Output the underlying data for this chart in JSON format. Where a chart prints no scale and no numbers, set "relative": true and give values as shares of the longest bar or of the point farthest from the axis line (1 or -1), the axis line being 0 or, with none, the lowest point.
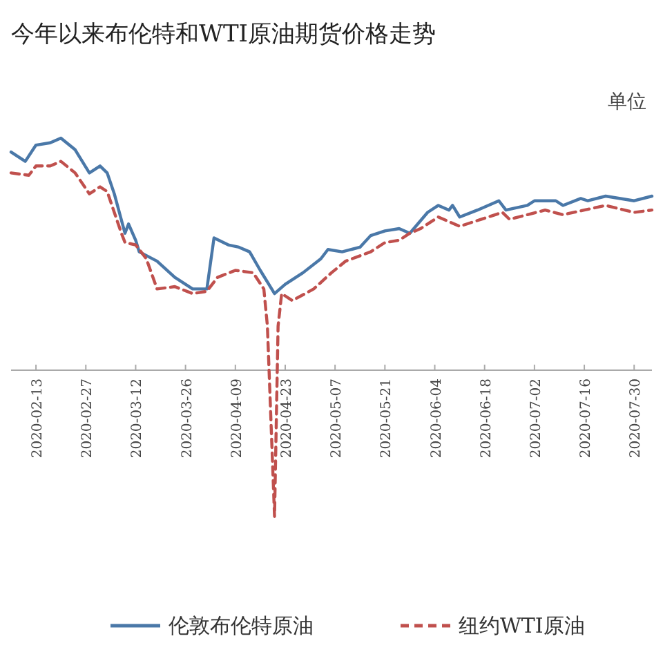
{
  "chart_data": {
    "type": "line",
    "title": "今年以来布伦特和WTI原油期货价格走势",
    "annotations": [
      "单位"
    ],
    "relative": true,
    "legend": "bottom",
    "grid": false,
    "xlim": [
      "2020-02-06",
      "2020-08-04"
    ],
    "xticks": [
      "2020-02-13",
      "2020-02-27",
      "2020-03-12",
      "2020-03-26",
      "2020-04-09",
      "2020-04-23",
      "2020-05-07",
      "2020-05-21",
      "2020-06-04",
      "2020-06-18",
      "2020-07-02",
      "2020-07-16",
      "2020-07-30"
    ],
    "series": [
      {
        "name": "伦敦布伦特原油",
        "color": "#4a78a8",
        "line_style": "solid",
        "x": [
          "2020-02-06",
          "2020-02-10",
          "2020-02-13",
          "2020-02-17",
          "2020-02-20",
          "2020-02-24",
          "2020-02-28",
          "2020-03-02",
          "2020-03-04",
          "2020-03-06",
          "2020-03-09",
          "2020-03-10",
          "2020-03-12",
          "2020-03-13",
          "2020-03-18",
          "2020-03-23",
          "2020-03-28",
          "2020-04-01",
          "2020-04-03",
          "2020-04-07",
          "2020-04-10",
          "2020-04-13",
          "2020-04-16",
          "2020-04-20",
          "2020-04-23",
          "2020-04-28",
          "2020-05-03",
          "2020-05-05",
          "2020-05-09",
          "2020-05-14",
          "2020-05-17",
          "2020-05-21",
          "2020-05-25",
          "2020-05-28",
          "2020-06-02",
          "2020-06-05",
          "2020-06-08",
          "2020-06-09",
          "2020-06-11",
          "2020-06-16",
          "2020-06-22",
          "2020-06-24",
          "2020-06-30",
          "2020-07-02",
          "2020-07-08",
          "2020-07-10",
          "2020-07-15",
          "2020-07-17",
          "2020-07-22",
          "2020-07-30",
          "2020-08-04"
        ],
        "values": [
          0.94,
          0.9,
          0.97,
          0.98,
          1,
          0.95,
          0.85,
          0.88,
          0.85,
          0.76,
          0.59,
          0.63,
          0.56,
          0.51,
          0.47,
          0.4,
          0.35,
          0.35,
          0.57,
          0.54,
          0.53,
          0.51,
          0.43,
          0.33,
          0.37,
          0.42,
          0.48,
          0.52,
          0.51,
          0.53,
          0.58,
          0.6,
          0.61,
          0.59,
          0.68,
          0.71,
          0.69,
          0.71,
          0.66,
          0.69,
          0.73,
          0.69,
          0.71,
          0.73,
          0.73,
          0.71,
          0.74,
          0.73,
          0.75,
          0.73,
          0.75
        ]
      },
      {
        "name": "纽约WTI原油",
        "color": "#c0504d",
        "line_style": "dashed",
        "x": [
          "2020-02-06",
          "2020-02-11",
          "2020-02-13",
          "2020-02-17",
          "2020-02-20",
          "2020-02-24",
          "2020-02-28",
          "2020-03-02",
          "2020-03-04",
          "2020-03-08",
          "2020-03-09",
          "2020-03-12",
          "2020-03-15",
          "2020-03-18",
          "2020-03-23",
          "2020-03-28",
          "2020-04-01",
          "2020-04-04",
          "2020-04-09",
          "2020-04-14",
          "2020-04-17",
          "2020-04-18",
          "2020-04-20",
          "2020-04-21",
          "2020-04-22",
          "2020-04-25",
          "2020-05-01",
          "2020-05-06",
          "2020-05-10",
          "2020-05-17",
          "2020-05-21",
          "2020-05-25",
          "2020-05-28",
          "2020-05-31",
          "2020-06-05",
          "2020-06-08",
          "2020-06-11",
          "2020-06-17",
          "2020-06-23",
          "2020-06-25",
          "2020-07-05",
          "2020-07-10",
          "2020-07-16",
          "2020-07-22",
          "2020-07-30",
          "2020-08-04"
        ],
        "values": [
          0.85,
          0.84,
          0.88,
          0.88,
          0.9,
          0.85,
          0.76,
          0.79,
          0.77,
          0.59,
          0.55,
          0.54,
          0.48,
          0.35,
          0.36,
          0.33,
          0.34,
          0.4,
          0.43,
          0.42,
          0.35,
          0.19,
          -0.63,
          0.19,
          0.33,
          0.3,
          0.35,
          0.42,
          0.47,
          0.51,
          0.55,
          0.56,
          0.59,
          0.61,
          0.66,
          0.64,
          0.62,
          0.65,
          0.68,
          0.65,
          0.69,
          0.67,
          0.69,
          0.71,
          0.68,
          0.69
        ]
      }
    ]
  }
}
